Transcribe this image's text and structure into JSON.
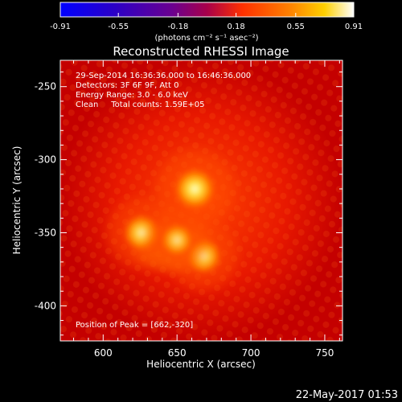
{
  "colorbar": {
    "tick_labels": [
      "-0.91",
      "-0.55",
      "-0.18",
      "0.18",
      "0.55",
      "0.91"
    ],
    "tick_values": [
      -0.91,
      -0.55,
      -0.18,
      0.18,
      0.55,
      0.91
    ],
    "range": [
      -0.91,
      0.91
    ],
    "units": "(photons cm⁻² s⁻¹ asec⁻²)"
  },
  "image": {
    "title": "Reconstructed RHESSI Image",
    "info_lines": [
      "29-Sep-2014 16:36:36.000 to 16:46:36.000",
      "Detectors: 3F 6F 9F, Att 0",
      "Energy Range: 3.0 - 6.0 keV",
      "Clean     Total counts: 1.59E+05"
    ],
    "peak_text": "Position of Peak = [662,-320]",
    "xlabel": "Heliocentric X (arcsec)",
    "ylabel": "Heliocentric Y (arcsec)",
    "xlim": [
      571,
      762
    ],
    "ylim": [
      -424,
      -232
    ],
    "x_ticks": [
      "600",
      "650",
      "700",
      "750"
    ],
    "x_tick_values": [
      600,
      650,
      700,
      750
    ],
    "y_ticks": [
      "-250",
      "-300",
      "-350",
      "-400"
    ],
    "y_tick_values": [
      -250,
      -300,
      -350,
      -400
    ],
    "sources": [
      {
        "x": 662,
        "y": -320,
        "rel_intensity": 1.0
      },
      {
        "x": 626,
        "y": -350,
        "rel_intensity": 0.8
      },
      {
        "x": 668,
        "y": -366,
        "rel_intensity": 0.75
      },
      {
        "x": 650,
        "y": -355,
        "rel_intensity": 0.6
      }
    ],
    "colors": {
      "background": "#000000",
      "text": "#ffffff"
    }
  },
  "footer": {
    "timestamp": "22-May-2017 01:53"
  }
}
